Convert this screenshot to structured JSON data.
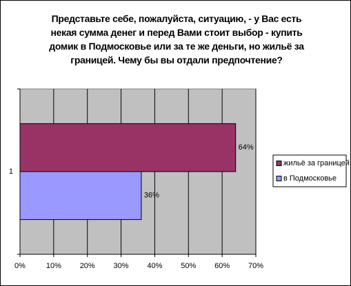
{
  "chart_data": {
    "type": "bar",
    "orientation": "horizontal",
    "title": "Представьте себе, пожалуйста, ситуацию, - у Вас есть некая сумма денег и перед Вами стоит выбор - купить домик в Подмосковье или за те же деньги, но жильё за границей. Чему бы вы отдали предпочтение?",
    "categories": [
      "1"
    ],
    "series": [
      {
        "name": "жильё за границей",
        "color": "#993366",
        "values": [
          64
        ],
        "value_labels": [
          "64%"
        ]
      },
      {
        "name": "в Подмосковье",
        "color": "#9999ff",
        "values": [
          36
        ],
        "value_labels": [
          "36%"
        ]
      }
    ],
    "xlim": [
      0,
      70
    ],
    "xticks": [
      {
        "value": 0,
        "label": "0%"
      },
      {
        "value": 10,
        "label": "10%"
      },
      {
        "value": 20,
        "label": "20%"
      },
      {
        "value": 30,
        "label": "30%"
      },
      {
        "value": 40,
        "label": "40%"
      },
      {
        "value": 50,
        "label": "50%"
      },
      {
        "value": 60,
        "label": "60%"
      },
      {
        "value": 70,
        "label": "70%"
      }
    ],
    "grid": true,
    "legend": "right",
    "plot_background": "#c0c0c0"
  }
}
